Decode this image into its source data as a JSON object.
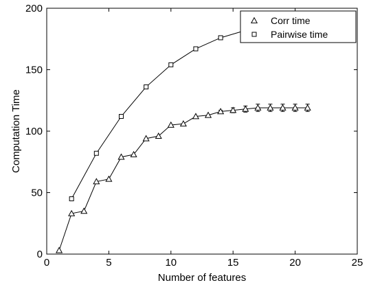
{
  "chart_data": {
    "type": "line",
    "xlabel": "Number of features",
    "ylabel": "Computation Time",
    "xlim": [
      0,
      25
    ],
    "ylim": [
      0,
      200
    ],
    "xticks": [
      "0",
      "5",
      "10",
      "15",
      "20",
      "25"
    ],
    "yticks": [
      "0",
      "50",
      "100",
      "150",
      "200"
    ],
    "grid": false,
    "legend_position": "top-right",
    "series": [
      {
        "name": "Corr time",
        "marker": "triangle",
        "x": [
          1,
          2,
          3,
          4,
          5,
          6,
          7,
          8,
          9,
          10,
          11,
          12,
          13,
          14,
          15,
          16,
          17,
          18,
          19,
          20,
          21
        ],
        "y": [
          3,
          33,
          35,
          59,
          61,
          79,
          81,
          94,
          96,
          105,
          106,
          112,
          113,
          116,
          117,
          118,
          119,
          119,
          119,
          119,
          119
        ],
        "error": [
          0,
          0,
          0,
          0,
          0,
          0,
          0,
          0,
          0,
          0,
          0,
          0,
          0,
          1,
          2,
          2.5,
          3,
          3,
          3,
          3,
          3
        ]
      },
      {
        "name": "Pairwise time",
        "marker": "square",
        "x": [
          2,
          4,
          6,
          8,
          10,
          12,
          14,
          16,
          18,
          20
        ],
        "y": [
          45,
          82,
          112,
          136,
          154,
          167,
          176,
          182,
          187,
          190
        ]
      }
    ]
  }
}
